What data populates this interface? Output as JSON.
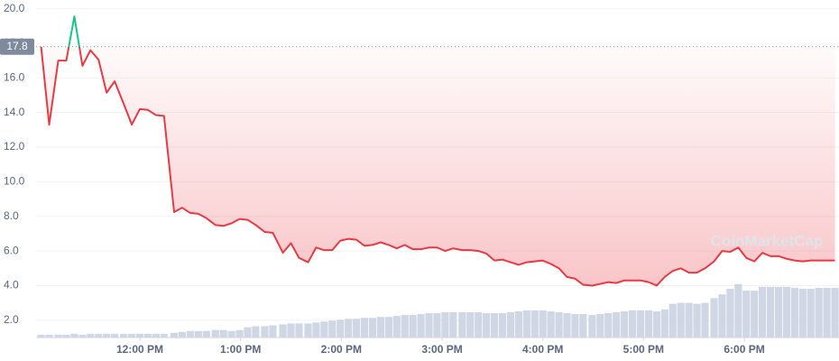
{
  "chart_data": {
    "type": "line",
    "watermark": "CoinMarketCap",
    "x": [
      11.02,
      11.1,
      11.19,
      11.27,
      11.35,
      11.43,
      11.51,
      11.59,
      11.67,
      11.75,
      11.84,
      11.92,
      12.0,
      12.08,
      12.16,
      12.24,
      12.34,
      12.42,
      12.5,
      12.58,
      12.66,
      12.75,
      12.83,
      12.91,
      12.99,
      13.07,
      13.15,
      13.24,
      13.32,
      13.42,
      13.5,
      13.58,
      13.67,
      13.75,
      13.83,
      13.91,
      13.99,
      14.07,
      14.15,
      14.23,
      14.31,
      14.39,
      14.47,
      14.55,
      14.63,
      14.71,
      14.79,
      14.87,
      14.95,
      15.03,
      15.11,
      15.2,
      15.28,
      15.36,
      15.44,
      15.52,
      15.6,
      15.68,
      15.76,
      15.84,
      15.92,
      16.0,
      16.08,
      16.16,
      16.24,
      16.32,
      16.4,
      16.49,
      16.57,
      16.65,
      16.73,
      16.81,
      16.89,
      16.97,
      17.05,
      17.13,
      17.21,
      17.29,
      17.37,
      17.45,
      17.53,
      17.61,
      17.7,
      17.78,
      17.86,
      17.94,
      18.02,
      18.1,
      18.18,
      18.26,
      18.34,
      18.42,
      18.5,
      18.58,
      18.66,
      18.74,
      18.82,
      18.9
    ],
    "series": [
      {
        "color": "#ea3943",
        "up_color": "#16c784",
        "values": [
          17.8,
          13.3,
          17.0,
          17.0,
          19.55,
          16.7,
          17.6,
          17.05,
          15.15,
          15.8,
          14.5,
          13.3,
          14.2,
          14.15,
          13.85,
          13.8,
          8.25,
          8.5,
          8.2,
          8.15,
          7.9,
          7.5,
          7.45,
          7.6,
          7.85,
          7.8,
          7.5,
          7.1,
          7.05,
          5.9,
          6.45,
          5.6,
          5.35,
          6.2,
          6.05,
          6.05,
          6.6,
          6.7,
          6.65,
          6.3,
          6.35,
          6.5,
          6.35,
          6.15,
          6.35,
          6.1,
          6.1,
          6.2,
          6.2,
          6.0,
          6.15,
          6.05,
          6.05,
          6.0,
          5.85,
          5.45,
          5.5,
          5.35,
          5.2,
          5.35,
          5.4,
          5.45,
          5.25,
          5.0,
          4.5,
          4.4,
          4.05,
          4.0,
          4.1,
          4.2,
          4.15,
          4.3,
          4.3,
          4.3,
          4.2,
          4.0,
          4.5,
          4.85,
          5.0,
          4.75,
          4.75,
          5.0,
          5.4,
          6.0,
          5.95,
          6.2,
          5.6,
          5.4,
          5.9,
          5.7,
          5.7,
          5.55,
          5.45,
          5.4,
          5.45,
          5.45,
          5.45,
          5.45
        ]
      },
      {
        "type": "bar",
        "axis": "y2",
        "color": "#cfd6e4",
        "values": [
          3,
          3,
          3,
          3,
          4,
          3,
          4,
          4,
          4,
          4,
          4,
          4,
          4,
          4,
          4,
          4,
          5,
          6,
          7,
          7,
          7,
          8,
          8,
          7,
          8,
          11,
          12,
          12,
          13,
          14,
          15,
          15,
          15,
          16,
          17,
          18,
          19,
          20,
          20,
          21,
          21,
          22,
          22,
          23,
          24,
          24,
          25,
          26,
          26,
          27,
          27,
          27,
          27,
          27,
          26,
          26,
          26,
          27,
          28,
          29,
          29,
          29,
          28,
          27,
          26,
          25,
          25,
          24,
          25,
          26,
          27,
          28,
          29,
          29,
          29,
          28,
          30,
          36,
          37,
          37,
          36,
          37,
          42,
          46,
          52,
          57,
          50,
          50,
          54,
          54,
          54,
          54,
          53,
          52,
          52,
          53,
          53,
          53
        ]
      }
    ],
    "reference_line": 17.8,
    "xlim": [
      10.97,
      18.94
    ],
    "ylim": [
      1,
      20.5
    ],
    "y2lim": [
      0,
      360
    ],
    "xticks": [
      {
        "value": 12,
        "label": "12:00 PM"
      },
      {
        "value": 13,
        "label": "1:00 PM"
      },
      {
        "value": 14,
        "label": "2:00 PM"
      },
      {
        "value": 15,
        "label": "3:00 PM"
      },
      {
        "value": 16,
        "label": "4:00 PM"
      },
      {
        "value": 17,
        "label": "5:00 PM"
      },
      {
        "value": 18,
        "label": "6:00 PM"
      }
    ],
    "yticks": [
      {
        "value": 2,
        "label": "2.0"
      },
      {
        "value": 4,
        "label": "4.0"
      },
      {
        "value": 6,
        "label": "6.0"
      },
      {
        "value": 8,
        "label": "8.0"
      },
      {
        "value": 10,
        "label": "10.0"
      },
      {
        "value": 12,
        "label": "12.0"
      },
      {
        "value": 14,
        "label": "14.0"
      },
      {
        "value": 16,
        "label": "16.0"
      },
      {
        "value": 18,
        "label": "18.0"
      },
      {
        "value": 20,
        "label": "20.0"
      }
    ],
    "grid": true
  }
}
